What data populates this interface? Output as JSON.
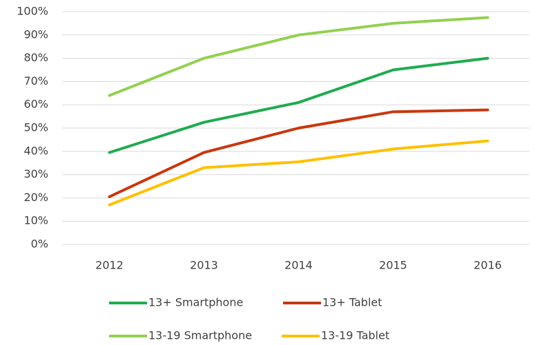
{
  "chart_data": {
    "type": "line",
    "categories": [
      "2012",
      "2013",
      "2014",
      "2015",
      "2016"
    ],
    "series": [
      {
        "name": "13+ Smartphone",
        "color": "#1fab4f",
        "values": [
          39.5,
          52.5,
          61,
          75,
          80
        ]
      },
      {
        "name": "13+ Tablet",
        "color": "#c8370e",
        "values": [
          20.5,
          39.5,
          50,
          57,
          57.8
        ]
      },
      {
        "name": "13-19 Smartphone",
        "color": "#92d050",
        "values": [
          64,
          80,
          90,
          95,
          97.5
        ]
      },
      {
        "name": "13-19 Tablet",
        "color": "#ffc000",
        "values": [
          17,
          33,
          35.5,
          41,
          44.5
        ]
      }
    ],
    "ylim": [
      0,
      100
    ],
    "yticks": [
      {
        "value": 0,
        "label": "0%"
      },
      {
        "value": 10,
        "label": "10%"
      },
      {
        "value": 20,
        "label": "20%"
      },
      {
        "value": 30,
        "label": "30%"
      },
      {
        "value": 40,
        "label": "40%"
      },
      {
        "value": 50,
        "label": "50%"
      },
      {
        "value": 60,
        "label": "60%"
      },
      {
        "value": 70,
        "label": "70%"
      },
      {
        "value": 80,
        "label": "80%"
      },
      {
        "value": 90,
        "label": "90%"
      },
      {
        "value": 100,
        "label": "100%"
      }
    ],
    "grid": true,
    "legend": "bottom"
  }
}
